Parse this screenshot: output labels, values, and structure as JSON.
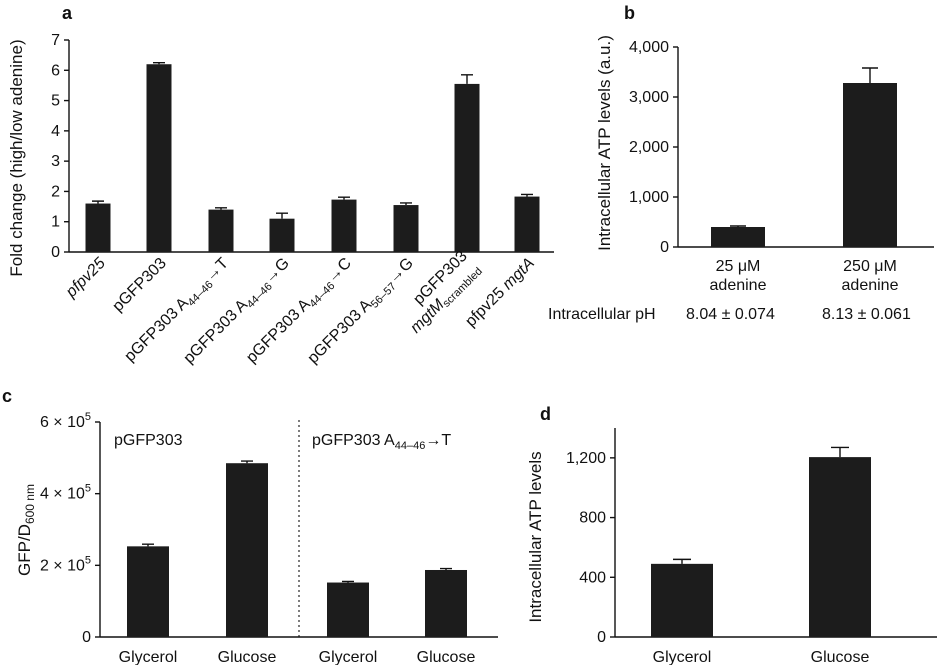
{
  "colors": {
    "bar": "#1c1c1c",
    "axis": "#111111",
    "background": "#ffffff"
  },
  "chart_data": [
    {
      "panel": "a",
      "type": "bar",
      "ylabel": "Fold change (high/low adenine)",
      "ylim": [
        0,
        7
      ],
      "yticks": [
        "0",
        "1",
        "2",
        "3",
        "4",
        "5",
        "6",
        "7"
      ],
      "categories": [
        {
          "label": "pfpv25",
          "italic": true
        },
        {
          "label": "pGFP303"
        },
        {
          "label": "pGFP303 A",
          "sub": "44–46",
          "tail": "→T"
        },
        {
          "label": "pGFP303 A",
          "sub": "44–46",
          "tail": "→G"
        },
        {
          "label": "pGFP303 A",
          "sub": "44–46",
          "tail": "→C"
        },
        {
          "label": "pGFP303 A",
          "sub": "56–57",
          "tail": "→G"
        },
        {
          "label": "pGFP303",
          "line2": "mgtM",
          "line2_sub": "scrambled"
        },
        {
          "label": "pfpv25 ",
          "tail_italic": "mgtA"
        }
      ],
      "values": [
        1.6,
        6.2,
        1.4,
        1.1,
        1.73,
        1.55,
        5.55,
        1.83
      ],
      "errors": [
        0.08,
        0.05,
        0.06,
        0.18,
        0.08,
        0.07,
        0.3,
        0.07
      ]
    },
    {
      "panel": "b",
      "type": "bar",
      "ylabel": "Intracellular ATP levels (a.u.)",
      "ylim": [
        0,
        4000
      ],
      "yticks": [
        "0",
        "1,000",
        "2,000",
        "3,000",
        "4,000"
      ],
      "categories": [
        {
          "line1": "25 μM",
          "line2": "adenine"
        },
        {
          "line1": "250 μM",
          "line2": "adenine"
        }
      ],
      "values": [
        400,
        3280
      ],
      "errors": [
        20,
        300
      ],
      "ph_label": "Intracellular pH",
      "ph_values": [
        "8.04 ± 0.074",
        "8.13 ± 0.061"
      ]
    },
    {
      "panel": "c",
      "type": "bar",
      "ylabel": "GFP/D",
      "ylabel_sub": "600 nm",
      "ylim": [
        0,
        600000
      ],
      "yticks": [
        {
          "value": 0,
          "label": "0"
        },
        {
          "value": 200000,
          "label": "2 × 10",
          "exp": "5"
        },
        {
          "value": 400000,
          "label": "4 × 10",
          "exp": "5"
        },
        {
          "value": 600000,
          "label": "6 × 10",
          "exp": "5"
        }
      ],
      "groups": [
        {
          "title": "pGFP303"
        },
        {
          "title": "pGFP303  A",
          "title_sub": "44–46",
          "title_tail": "→T"
        }
      ],
      "categories": [
        "Glycerol",
        "Glucose",
        "Glycerol",
        "Glucose"
      ],
      "values": [
        253000,
        485000,
        152000,
        187000
      ],
      "errors": [
        6000,
        6000,
        3000,
        4000
      ]
    },
    {
      "panel": "d",
      "type": "bar",
      "ylabel": "Intracellular ATP levels",
      "ylim": [
        0,
        1400
      ],
      "yticks": [
        "0",
        "400",
        "800",
        "1,200"
      ],
      "categories": [
        "Glycerol",
        "Glucose"
      ],
      "values": [
        490,
        1205
      ],
      "errors": [
        30,
        65
      ]
    }
  ]
}
